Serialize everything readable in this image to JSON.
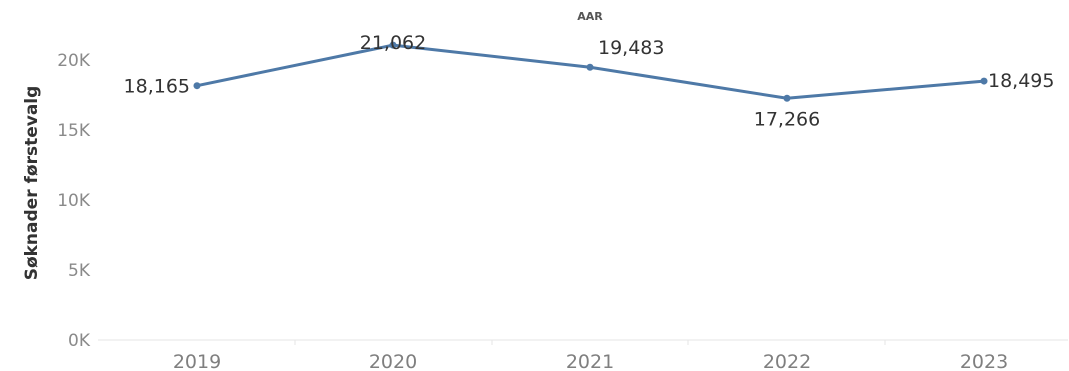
{
  "chart_data": {
    "type": "line",
    "title": "AAR",
    "xlabel": "",
    "ylabel": "Søknader førstevalg",
    "categories": [
      "2019",
      "2020",
      "2021",
      "2022",
      "2023"
    ],
    "series": [
      {
        "values": [
          18165,
          21062,
          19483,
          17266,
          18495
        ]
      }
    ],
    "data_labels": [
      "18,165",
      "21,062",
      "19,483",
      "17,266",
      "18,495"
    ],
    "ylim": [
      0,
      22000
    ],
    "y_ticks": [
      0,
      5000,
      10000,
      15000,
      20000
    ],
    "y_tick_labels": [
      "0K",
      "5K",
      "10K",
      "15K",
      "20K"
    ],
    "grid": false,
    "legend": "none",
    "colors": {
      "line": "#4e79a7"
    }
  }
}
